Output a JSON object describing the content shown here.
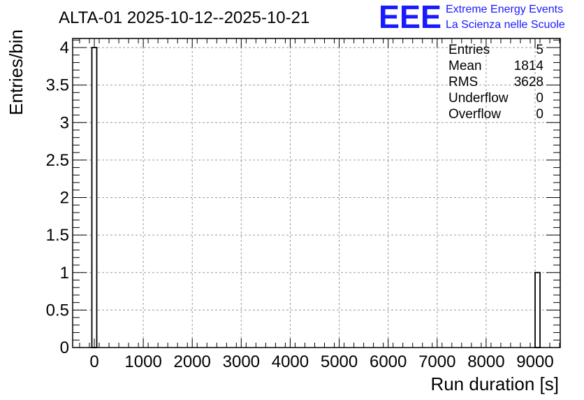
{
  "title": "ALTA-01 2025-10-12--2025-10-21",
  "logo": {
    "mark": "EEE",
    "line1": "Extreme Energy Events",
    "line2": "La Scienza nelle Scuole",
    "color": "#1a1aff"
  },
  "stats": {
    "rows": [
      {
        "label": "Entries",
        "value": "5"
      },
      {
        "label": "Mean",
        "value": "1814"
      },
      {
        "label": "RMS",
        "value": "3628"
      },
      {
        "label": "Underflow",
        "value": "0"
      },
      {
        "label": "Overflow",
        "value": "0"
      }
    ]
  },
  "chart_data": {
    "type": "bar",
    "title": "ALTA-01 2025-10-12--2025-10-21",
    "xlabel": "Run duration [s]",
    "ylabel": "Entries/bin",
    "xlim": [
      -500,
      9500
    ],
    "ylim": [
      0,
      4.2
    ],
    "x_ticks": [
      0,
      1000,
      2000,
      3000,
      4000,
      5000,
      6000,
      7000,
      8000,
      9000
    ],
    "y_ticks": [
      0,
      0.5,
      1,
      1.5,
      2,
      2.5,
      3,
      3.5,
      4
    ],
    "x_tick_labels": [
      "0",
      "1000",
      "2000",
      "3000",
      "4000",
      "5000",
      "6000",
      "7000",
      "8000",
      "9000"
    ],
    "y_tick_labels": [
      "0",
      "0.5",
      "1",
      "1.5",
      "2",
      "2.5",
      "3",
      "3.5",
      "4"
    ],
    "grid": true,
    "bins": [
      {
        "x_low": -50,
        "x_high": 50,
        "value": 4
      },
      {
        "x_low": 9000,
        "x_high": 9100,
        "value": 1
      }
    ]
  }
}
